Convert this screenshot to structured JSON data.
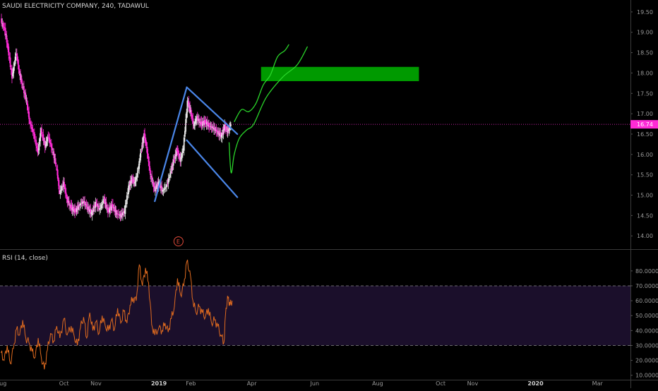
{
  "chart_data": [
    {
      "type": "candlestick",
      "title": "SAUDI ELECTRICITY COMPANY, 240, TADAWUL",
      "ylim": [
        13.9,
        19.55
      ],
      "y_ticks": [
        "19.50",
        "19.00",
        "18.50",
        "18.00",
        "17.50",
        "17.00",
        "16.50",
        "16.00",
        "15.50",
        "15.00",
        "14.50",
        "14.00"
      ],
      "last_price": "16.74",
      "colors": {
        "up": "#e8e8e8",
        "down": "#ff2bd6",
        "price_line": "#ff2bd6"
      },
      "price_path": [
        [
          "2018-08-01",
          19.3
        ],
        [
          "2018-08-05",
          19.05
        ],
        [
          "2018-08-08",
          18.6
        ],
        [
          "2018-08-12",
          17.9
        ],
        [
          "2018-08-16",
          18.5
        ],
        [
          "2018-08-19",
          18.0
        ],
        [
          "2018-08-22",
          17.7
        ],
        [
          "2018-08-26",
          17.3
        ],
        [
          "2018-08-29",
          16.8
        ],
        [
          "2018-09-02",
          16.5
        ],
        [
          "2018-09-06",
          16.05
        ],
        [
          "2018-09-09",
          16.6
        ],
        [
          "2018-09-13",
          16.2
        ],
        [
          "2018-09-16",
          16.45
        ],
        [
          "2018-09-20",
          16.1
        ],
        [
          "2018-09-24",
          15.7
        ],
        [
          "2018-09-27",
          15.05
        ],
        [
          "2018-10-01",
          15.3
        ],
        [
          "2018-10-04",
          14.9
        ],
        [
          "2018-10-08",
          14.7
        ],
        [
          "2018-10-12",
          14.6
        ],
        [
          "2018-10-16",
          14.75
        ],
        [
          "2018-10-20",
          14.85
        ],
        [
          "2018-10-24",
          14.7
        ],
        [
          "2018-10-28",
          14.55
        ],
        [
          "2018-11-01",
          14.8
        ],
        [
          "2018-11-05",
          14.65
        ],
        [
          "2018-11-09",
          14.9
        ],
        [
          "2018-11-13",
          14.6
        ],
        [
          "2018-11-17",
          14.75
        ],
        [
          "2018-11-21",
          14.55
        ],
        [
          "2018-11-25",
          14.5
        ],
        [
          "2018-11-29",
          14.6
        ],
        [
          "2018-12-03",
          15.2
        ],
        [
          "2018-12-06",
          15.4
        ],
        [
          "2018-12-09",
          15.3
        ],
        [
          "2018-12-12",
          15.6
        ],
        [
          "2018-12-15",
          16.1
        ],
        [
          "2018-12-18",
          16.5
        ],
        [
          "2018-12-21",
          16.05
        ],
        [
          "2018-12-24",
          15.5
        ],
        [
          "2018-12-28",
          15.15
        ],
        [
          "2019-01-01",
          15.3
        ],
        [
          "2019-01-05",
          15.1
        ],
        [
          "2019-01-09",
          15.25
        ],
        [
          "2019-01-13",
          15.6
        ],
        [
          "2019-01-16",
          15.9
        ],
        [
          "2019-01-19",
          16.1
        ],
        [
          "2019-01-22",
          15.85
        ],
        [
          "2019-01-25",
          16.15
        ],
        [
          "2019-01-29",
          17.3
        ],
        [
          "2019-02-01",
          17.05
        ],
        [
          "2019-02-04",
          16.7
        ],
        [
          "2019-02-07",
          16.9
        ],
        [
          "2019-02-11",
          16.75
        ],
        [
          "2019-02-15",
          16.8
        ],
        [
          "2019-02-19",
          16.7
        ],
        [
          "2019-02-23",
          16.65
        ],
        [
          "2019-02-27",
          16.55
        ],
        [
          "2019-03-03",
          16.45
        ],
        [
          "2019-03-06",
          16.7
        ],
        [
          "2019-03-09",
          16.55
        ],
        [
          "2019-03-12",
          16.74
        ]
      ],
      "trendlines": [
        {
          "name": "flagpole",
          "color": "#4a86e8",
          "points": [
            [
              "2018-12-28",
              14.85
            ],
            [
              "2019-01-28",
              17.65
            ]
          ]
        },
        {
          "name": "flag-upper",
          "color": "#4a86e8",
          "points": [
            [
              "2019-01-28",
              17.65
            ],
            [
              "2019-03-18",
              16.5
            ]
          ]
        },
        {
          "name": "flag-lower",
          "color": "#4a86e8",
          "points": [
            [
              "2019-01-28",
              16.35
            ],
            [
              "2019-03-18",
              14.95
            ]
          ]
        }
      ],
      "target_zone": {
        "color": "#009a00",
        "x_range": [
          "2019-04-10",
          "2019-09-10"
        ],
        "y_range": [
          17.8,
          18.15
        ]
      },
      "projections": [
        {
          "name": "projection-1",
          "color": "#2ad62a",
          "points": [
            [
              "2019-03-15",
              16.8
            ],
            [
              "2019-03-22",
              17.1
            ],
            [
              "2019-03-29",
              17.05
            ],
            [
              "2019-04-05",
              17.25
            ],
            [
              "2019-04-12",
              17.7
            ],
            [
              "2019-04-19",
              17.95
            ],
            [
              "2019-04-26",
              18.4
            ],
            [
              "2019-05-03",
              18.55
            ],
            [
              "2019-05-07",
              18.7
            ]
          ]
        },
        {
          "name": "projection-2",
          "color": "#2ad62a",
          "points": [
            [
              "2019-03-10",
              16.3
            ],
            [
              "2019-03-12",
              15.55
            ],
            [
              "2019-03-15",
              16.0
            ],
            [
              "2019-03-20",
              16.4
            ],
            [
              "2019-03-27",
              16.6
            ],
            [
              "2019-04-03",
              16.75
            ],
            [
              "2019-04-15",
              17.4
            ],
            [
              "2019-05-01",
              17.9
            ],
            [
              "2019-05-15",
              18.2
            ],
            [
              "2019-05-25",
              18.65
            ]
          ]
        }
      ],
      "event_marker": {
        "label": "E",
        "date": "2019-01-20"
      }
    },
    {
      "type": "line",
      "title": "RSI (14, close)",
      "ylim": [
        7.5,
        87.5
      ],
      "y_ticks": [
        "80.0000",
        "70.0000",
        "60.0000",
        "50.0000",
        "40.0000",
        "30.0000",
        "20.0000",
        "10.0000"
      ],
      "bands": [
        30,
        70
      ],
      "colors": {
        "line": "#e06b1f",
        "band_fill": "#1b0f2b",
        "band_line": "#8a8a8a"
      },
      "values": [
        [
          "2018-08-01",
          25
        ],
        [
          "2018-08-04",
          20
        ],
        [
          "2018-08-07",
          30
        ],
        [
          "2018-08-10",
          18
        ],
        [
          "2018-08-13",
          28
        ],
        [
          "2018-08-16",
          41
        ],
        [
          "2018-08-19",
          37
        ],
        [
          "2018-08-22",
          47
        ],
        [
          "2018-08-25",
          35
        ],
        [
          "2018-08-28",
          32
        ],
        [
          "2018-08-31",
          26
        ],
        [
          "2018-09-03",
          22
        ],
        [
          "2018-09-06",
          35
        ],
        [
          "2018-09-09",
          22
        ],
        [
          "2018-09-12",
          14
        ],
        [
          "2018-09-15",
          27
        ],
        [
          "2018-09-18",
          38
        ],
        [
          "2018-09-21",
          33
        ],
        [
          "2018-09-24",
          43
        ],
        [
          "2018-09-27",
          35
        ],
        [
          "2018-10-01",
          48
        ],
        [
          "2018-10-04",
          37
        ],
        [
          "2018-10-08",
          43
        ],
        [
          "2018-10-11",
          36
        ],
        [
          "2018-10-14",
          30
        ],
        [
          "2018-10-17",
          42
        ],
        [
          "2018-10-20",
          49
        ],
        [
          "2018-10-23",
          35
        ],
        [
          "2018-10-26",
          52
        ],
        [
          "2018-10-29",
          40
        ],
        [
          "2018-11-01",
          46
        ],
        [
          "2018-11-04",
          38
        ],
        [
          "2018-11-07",
          50
        ],
        [
          "2018-11-10",
          43
        ],
        [
          "2018-11-13",
          40
        ],
        [
          "2018-11-16",
          47
        ],
        [
          "2018-11-19",
          41
        ],
        [
          "2018-11-22",
          55
        ],
        [
          "2018-11-25",
          45
        ],
        [
          "2018-11-28",
          53
        ],
        [
          "2018-12-01",
          45
        ],
        [
          "2018-12-04",
          57
        ],
        [
          "2018-12-07",
          62
        ],
        [
          "2018-12-10",
          60
        ],
        [
          "2018-12-13",
          84
        ],
        [
          "2018-12-16",
          70
        ],
        [
          "2018-12-19",
          82
        ],
        [
          "2018-12-22",
          72
        ],
        [
          "2018-12-25",
          44
        ],
        [
          "2018-12-28",
          37
        ],
        [
          "2019-01-01",
          42
        ],
        [
          "2019-01-04",
          40
        ],
        [
          "2019-01-07",
          45
        ],
        [
          "2019-01-10",
          39
        ],
        [
          "2019-01-13",
          48
        ],
        [
          "2019-01-16",
          56
        ],
        [
          "2019-01-19",
          75
        ],
        [
          "2019-01-22",
          64
        ],
        [
          "2019-01-25",
          70
        ],
        [
          "2019-01-28",
          86
        ],
        [
          "2019-01-31",
          80
        ],
        [
          "2019-02-03",
          60
        ],
        [
          "2019-02-06",
          52
        ],
        [
          "2019-02-09",
          56
        ],
        [
          "2019-02-12",
          52
        ],
        [
          "2019-02-15",
          49
        ],
        [
          "2019-02-18",
          55
        ],
        [
          "2019-02-21",
          45
        ],
        [
          "2019-02-24",
          47
        ],
        [
          "2019-02-27",
          43
        ],
        [
          "2019-03-02",
          37
        ],
        [
          "2019-03-05",
          32
        ],
        [
          "2019-03-07",
          55
        ],
        [
          "2019-03-09",
          62
        ],
        [
          "2019-03-11",
          57
        ],
        [
          "2019-03-13",
          60
        ]
      ]
    }
  ],
  "x_axis": {
    "ticks": [
      {
        "date": "2018-08-01",
        "label": "Aug",
        "year": false
      },
      {
        "date": "2018-10-01",
        "label": "Oct",
        "year": false
      },
      {
        "date": "2018-11-01",
        "label": "Nov",
        "year": false
      },
      {
        "date": "2019-01-01",
        "label": "2019",
        "year": true
      },
      {
        "date": "2019-02-01",
        "label": "Feb",
        "year": false
      },
      {
        "date": "2019-04-01",
        "label": "Apr",
        "year": false
      },
      {
        "date": "2019-06-01",
        "label": "Jun",
        "year": false
      },
      {
        "date": "2019-08-01",
        "label": "Aug",
        "year": false
      },
      {
        "date": "2019-10-01",
        "label": "Oct",
        "year": false
      },
      {
        "date": "2019-11-01",
        "label": "Nov",
        "year": false
      },
      {
        "date": "2020-01-01",
        "label": "2020",
        "year": true
      },
      {
        "date": "2020-03-01",
        "label": "Mar",
        "year": false
      }
    ],
    "range": [
      "2018-07-31",
      "2020-04-02"
    ]
  }
}
